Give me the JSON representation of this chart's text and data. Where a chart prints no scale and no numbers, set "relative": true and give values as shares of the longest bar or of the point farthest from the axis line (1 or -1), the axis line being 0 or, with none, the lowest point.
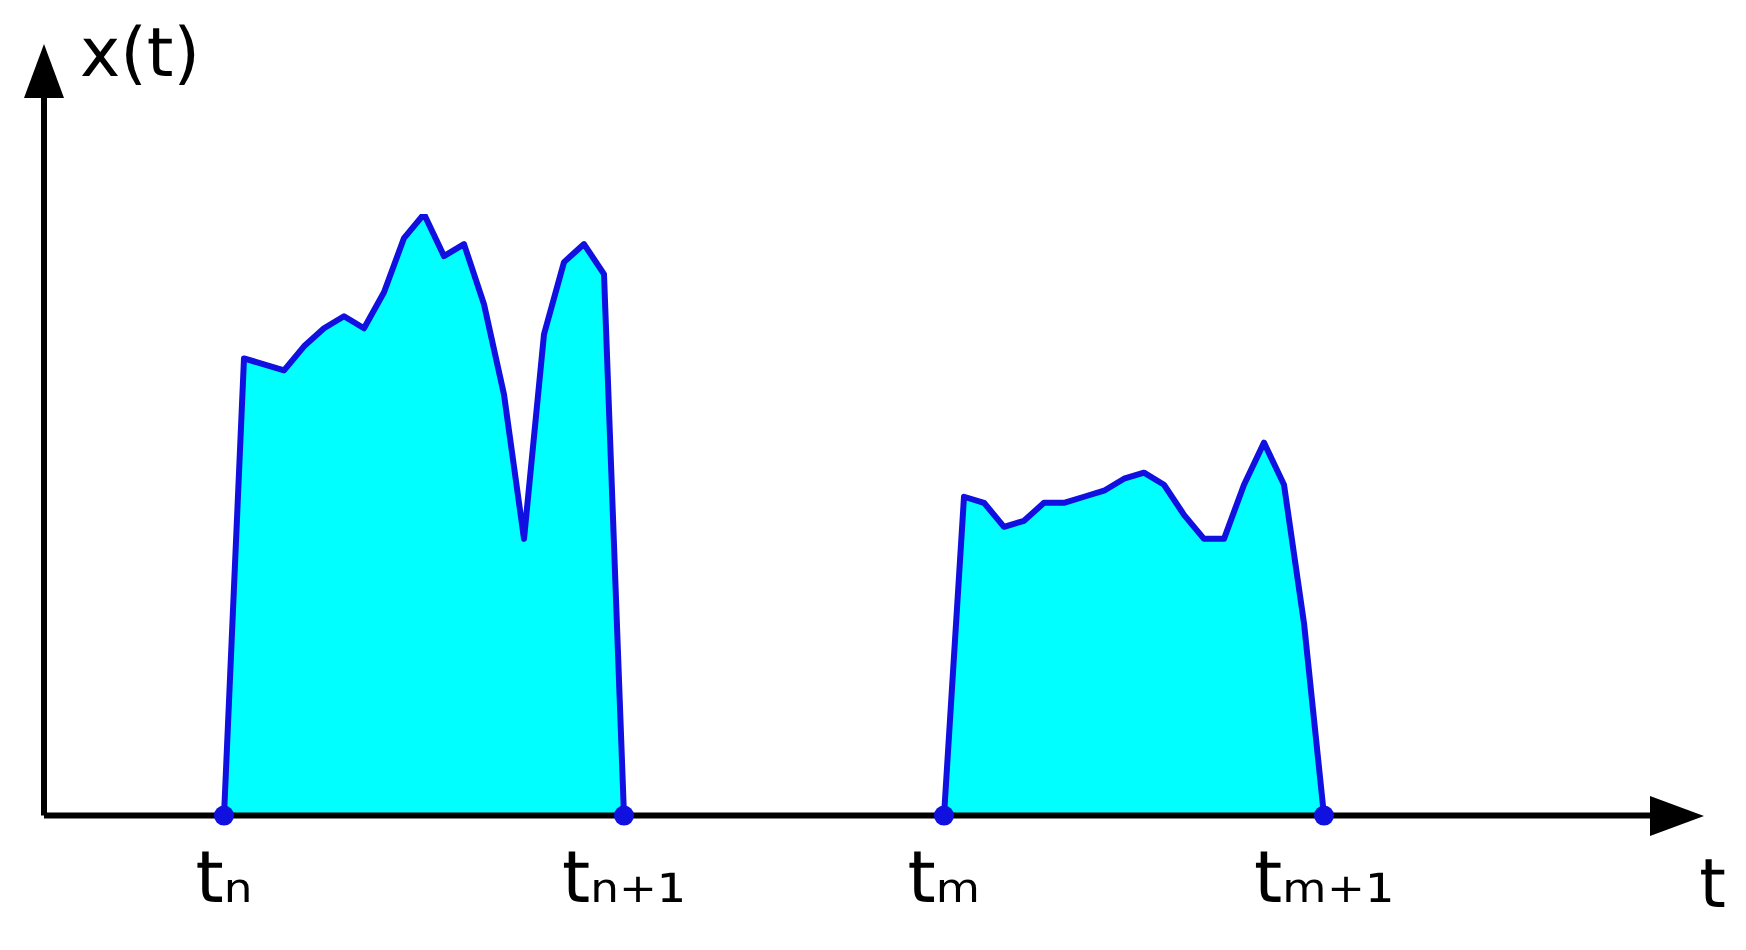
{
  "chart_data": {
    "type": "area",
    "relative": true,
    "xlabel": "t",
    "ylabel": "x(t)",
    "marker": "none",
    "categories": [
      null,
      null,
      null,
      null,
      null,
      null,
      null,
      null,
      null,
      "tₙ",
      null,
      null,
      null,
      null,
      null,
      null,
      null,
      null,
      null,
      null,
      null,
      null,
      null,
      null,
      null,
      null,
      null,
      null,
      null,
      "tₙ₊₁",
      null,
      null,
      null,
      null,
      null,
      null,
      null,
      null,
      null,
      null,
      null,
      null,
      null,
      null,
      null,
      "tₘ",
      null,
      null,
      null,
      null,
      null,
      null,
      null,
      null,
      null,
      null,
      null,
      null,
      null,
      null,
      null,
      null,
      null,
      null,
      "tₘ₊₁",
      null,
      null,
      null,
      null,
      null,
      null,
      null,
      null,
      null,
      null,
      null,
      null,
      null,
      null,
      null,
      null,
      null,
      null,
      null
    ],
    "series": [
      {
        "color": "#00ffff",
        "values": [
          null,
          null,
          null,
          null,
          null,
          null,
          null,
          null,
          null,
          0,
          0.76,
          0.75,
          0.74,
          0.78,
          0.81,
          0.83,
          0.81,
          0.87,
          0.96,
          1,
          0.93,
          0.95,
          0.85,
          0.7,
          0.46,
          0.8,
          0.92,
          0.95,
          0.9,
          0,
          null,
          null,
          null,
          null,
          null,
          null,
          null,
          null,
          null,
          null,
          null,
          null,
          null,
          null,
          null,
          0,
          0.53,
          0.52,
          0.48,
          0.49,
          0.52,
          0.52,
          0.53,
          0.54,
          0.56,
          0.57,
          0.55,
          0.5,
          0.46,
          0.46,
          0.55,
          0.62,
          0.55,
          0.32,
          0,
          null,
          null,
          null,
          null,
          null,
          null,
          null,
          null,
          null,
          null,
          null,
          null,
          null,
          null,
          null,
          null,
          null,
          null,
          null
        ]
      }
    ]
  }
}
